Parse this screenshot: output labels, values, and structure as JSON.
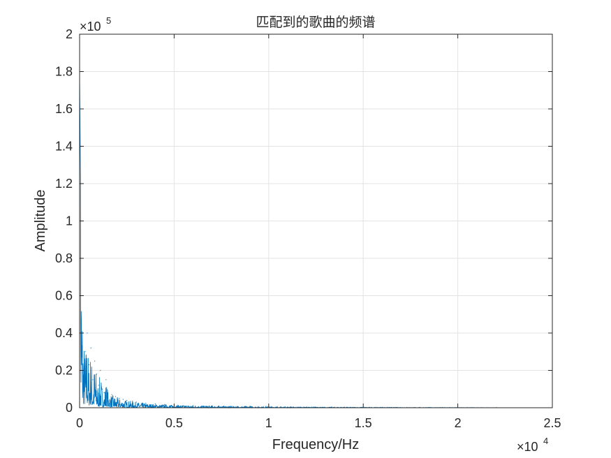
{
  "chart_data": {
    "type": "line",
    "title": "匹配到的歌曲的频谱",
    "xlabel": "Frequency/Hz",
    "ylabel": "Amplitude",
    "xlim": [
      0,
      25000
    ],
    "ylim": [
      0,
      200000
    ],
    "x_multiplier_label": "×10",
    "x_multiplier_exp": "4",
    "y_multiplier_label": "×10",
    "y_multiplier_exp": "5",
    "x_ticks": [
      0,
      5000,
      10000,
      15000,
      20000,
      25000
    ],
    "x_tick_labels": [
      "0",
      "0.5",
      "1",
      "1.5",
      "2",
      "2.5"
    ],
    "y_ticks": [
      0,
      20000,
      40000,
      60000,
      80000,
      100000,
      120000,
      140000,
      160000,
      180000,
      200000
    ],
    "y_tick_labels": [
      "0",
      "0.2",
      "0.4",
      "0.6",
      "0.8",
      "1",
      "1.2",
      "1.4",
      "1.6",
      "1.8",
      "2"
    ],
    "grid": true,
    "series_color": "#0072BD",
    "series": [
      {
        "x": [
          0,
          50,
          100,
          150,
          200,
          300,
          400,
          500,
          600,
          700,
          800,
          900,
          1000,
          1100,
          1200,
          1300,
          1400,
          1500,
          1700,
          1900,
          2100,
          2300,
          2500,
          2800,
          3000,
          3500,
          4000,
          4500,
          5000,
          6000,
          7000,
          8000,
          9000,
          10000,
          12000,
          14000,
          16000,
          18000,
          20000,
          22050
        ],
        "y": [
          180000,
          120000,
          80000,
          60000,
          40000,
          30000,
          40000,
          23000,
          32000,
          15000,
          25000,
          18000,
          12000,
          20000,
          10000,
          8000,
          15000,
          9000,
          7000,
          6000,
          5000,
          4500,
          4000,
          3500,
          3000,
          2500,
          2000,
          1800,
          1500,
          1200,
          1000,
          800,
          700,
          600,
          400,
          300,
          250,
          200,
          150,
          100
        ]
      }
    ]
  }
}
